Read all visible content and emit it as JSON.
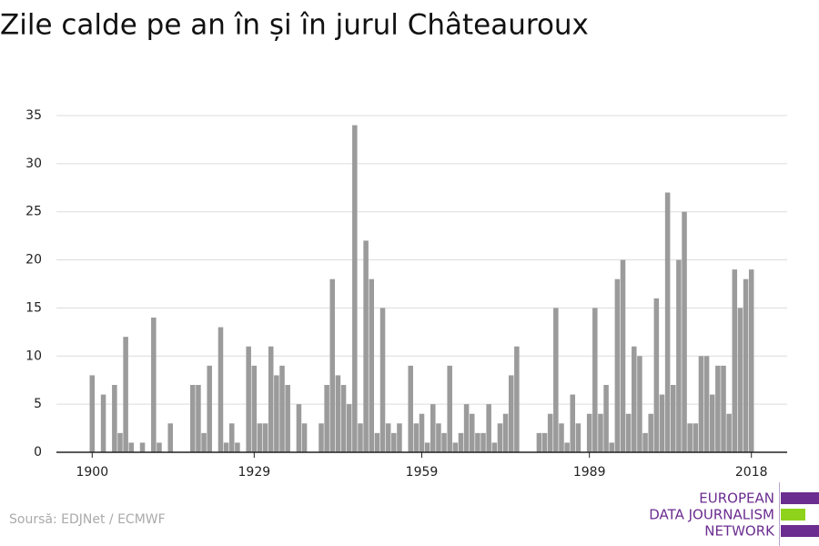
{
  "chart_data": {
    "type": "bar",
    "title": "Zile calde pe an în și în jurul Châteauroux",
    "x": [
      1900,
      1901,
      1902,
      1903,
      1904,
      1905,
      1906,
      1907,
      1908,
      1909,
      1910,
      1911,
      1912,
      1913,
      1914,
      1915,
      1916,
      1917,
      1918,
      1919,
      1920,
      1921,
      1922,
      1923,
      1924,
      1925,
      1926,
      1927,
      1928,
      1929,
      1930,
      1931,
      1932,
      1933,
      1934,
      1935,
      1936,
      1937,
      1938,
      1939,
      1940,
      1941,
      1942,
      1943,
      1944,
      1945,
      1946,
      1947,
      1948,
      1949,
      1950,
      1951,
      1952,
      1953,
      1954,
      1955,
      1956,
      1957,
      1958,
      1959,
      1960,
      1961,
      1962,
      1963,
      1964,
      1965,
      1966,
      1967,
      1968,
      1969,
      1970,
      1971,
      1972,
      1973,
      1974,
      1975,
      1976,
      1977,
      1978,
      1979,
      1980,
      1981,
      1982,
      1983,
      1984,
      1985,
      1986,
      1987,
      1988,
      1989,
      1990,
      1991,
      1992,
      1993,
      1994,
      1995,
      1996,
      1997,
      1998,
      1999,
      2000,
      2001,
      2002,
      2003,
      2004,
      2005,
      2006,
      2007,
      2008,
      2009,
      2010,
      2011,
      2012,
      2013,
      2014,
      2015,
      2016,
      2017,
      2018
    ],
    "values": [
      8,
      null,
      6,
      null,
      7,
      2,
      12,
      1,
      null,
      1,
      null,
      14,
      1,
      null,
      3,
      null,
      null,
      null,
      7,
      7,
      2,
      9,
      null,
      13,
      1,
      3,
      1,
      null,
      11,
      9,
      3,
      3,
      11,
      8,
      9,
      7,
      null,
      5,
      3,
      null,
      null,
      3,
      7,
      18,
      8,
      7,
      5,
      34,
      3,
      22,
      18,
      2,
      15,
      3,
      2,
      3,
      null,
      9,
      3,
      4,
      1,
      5,
      3,
      2,
      9,
      1,
      2,
      5,
      4,
      2,
      2,
      5,
      1,
      3,
      4,
      8,
      11,
      null,
      null,
      null,
      2,
      2,
      4,
      15,
      3,
      1,
      6,
      3,
      null,
      4,
      15,
      4,
      7,
      1,
      18,
      20,
      4,
      11,
      10,
      2,
      4,
      16,
      6,
      27,
      7,
      20,
      25,
      3,
      3,
      10,
      10,
      6,
      9,
      9,
      4,
      19,
      15,
      18,
      19
    ],
    "color": "#9b9b9b",
    "xlim": [
      1893.6,
      2024.4
    ],
    "xticks": [
      1900,
      1929,
      1959,
      1989,
      2018
    ],
    "ylim": [
      0,
      35
    ],
    "yticks": [
      0,
      5,
      10,
      15,
      20,
      25,
      30,
      35
    ],
    "grid": true
  },
  "source": "Soursă: EDJNet / ECMWF",
  "logo": [
    "EUROPEAN",
    "DATA JOURNALISM",
    "NETWORK"
  ]
}
